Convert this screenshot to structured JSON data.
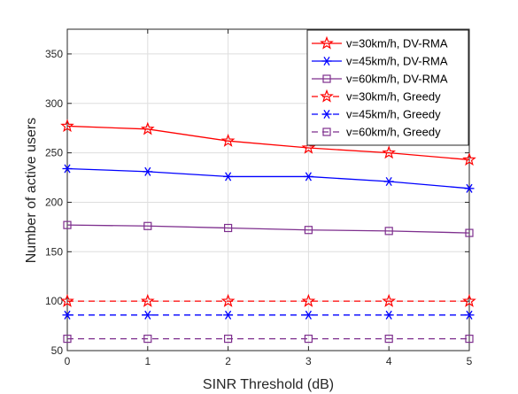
{
  "chart_data": {
    "type": "line",
    "xlabel": "SINR Threshold (dB)",
    "ylabel": "Number of active users",
    "xlim": [
      0,
      5
    ],
    "ylim": [
      50,
      375
    ],
    "xticks": [
      0,
      1,
      2,
      3,
      4,
      5
    ],
    "yticks": [
      50,
      100,
      150,
      200,
      250,
      300,
      350
    ],
    "grid": true,
    "legend_position": "top-right",
    "x": [
      0,
      1,
      2,
      3,
      4,
      5
    ],
    "series": [
      {
        "name": "v=30km/h, DV-RMA",
        "values": [
          277,
          274,
          262,
          255,
          250,
          243
        ],
        "color": "#ff0000",
        "marker": "star",
        "dash": "solid"
      },
      {
        "name": "v=45km/h, DV-RMA",
        "values": [
          234,
          231,
          226,
          226,
          221,
          214
        ],
        "color": "#0000ff",
        "marker": "asterisk",
        "dash": "solid"
      },
      {
        "name": "v=60km/h, DV-RMA",
        "values": [
          177,
          176,
          174,
          172,
          171,
          169
        ],
        "color": "#7e2f8e",
        "marker": "square",
        "dash": "solid"
      },
      {
        "name": "v=30km/h, Greedy",
        "values": [
          100,
          100,
          100,
          100,
          100,
          100
        ],
        "color": "#ff0000",
        "marker": "star",
        "dash": "dashed"
      },
      {
        "name": "v=45km/h, Greedy",
        "values": [
          86,
          86,
          86,
          86,
          86,
          86
        ],
        "color": "#0000ff",
        "marker": "asterisk",
        "dash": "dashed"
      },
      {
        "name": "v=60km/h, Greedy",
        "values": [
          62,
          62,
          62,
          62,
          62,
          62
        ],
        "color": "#7e2f8e",
        "marker": "square",
        "dash": "dashed"
      }
    ]
  }
}
